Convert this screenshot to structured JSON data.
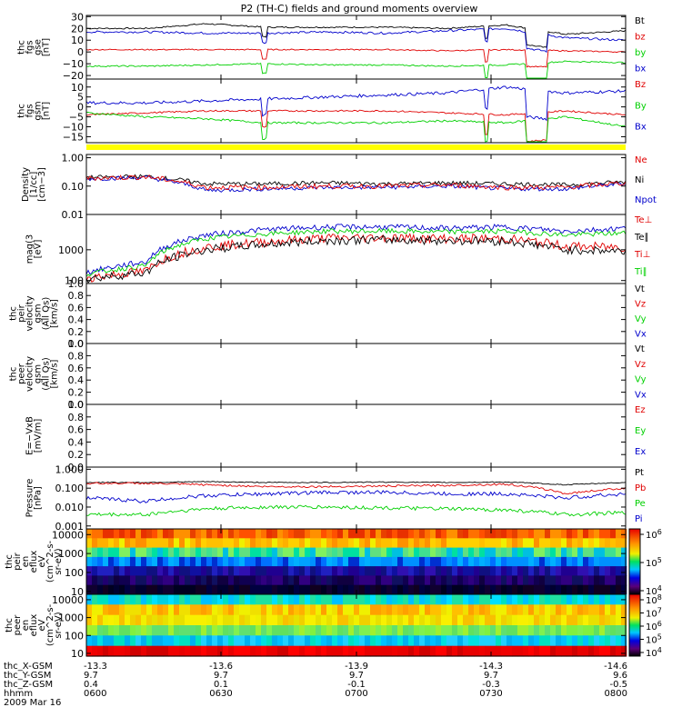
{
  "title": "P2 (TH-C) fields and ground moments overview",
  "colors": {
    "black": "#000000",
    "red": "#e00000",
    "green": "#00d000",
    "blue": "#0000cc",
    "yellow": "#ffff00"
  },
  "panels": [
    {
      "id": "fgs-gse",
      "ylabel": [
        "thc",
        "fgs",
        "gse",
        "[nT]"
      ],
      "ticks": [
        {
          "v": 30,
          "t": "30"
        },
        {
          "v": 20,
          "t": "20"
        },
        {
          "v": 10,
          "t": "10"
        },
        {
          "v": 0,
          "t": "0"
        },
        {
          "v": -10,
          "t": "−10"
        },
        {
          "v": -20,
          "t": "−20"
        }
      ],
      "ylim": [
        -23,
        31
      ],
      "log": false,
      "legend": [
        {
          "t": "Bt",
          "c": "black"
        },
        {
          "t": "bz",
          "c": "red"
        },
        {
          "t": "by",
          "c": "green"
        },
        {
          "t": "bx",
          "c": "blue"
        }
      ]
    },
    {
      "id": "fgs-gsm",
      "ylabel": [
        "thc",
        "fgs",
        "gsm",
        "[nT]"
      ],
      "ticks": [
        {
          "v": 10,
          "t": "10"
        },
        {
          "v": 5,
          "t": "5"
        },
        {
          "v": 0,
          "t": "0"
        },
        {
          "v": -5,
          "t": "−5"
        },
        {
          "v": -10,
          "t": "−10"
        },
        {
          "v": -15,
          "t": "−15"
        }
      ],
      "ylim": [
        -18,
        14
      ],
      "log": false,
      "legend": [
        {
          "t": "Bz",
          "c": "red"
        },
        {
          "t": "By",
          "c": "green"
        },
        {
          "t": "Bx",
          "c": "blue"
        }
      ]
    },
    {
      "id": "density",
      "ylabel": [
        "Density",
        "[1/cc]",
        "[cm−3]"
      ],
      "ticks": [
        {
          "v": 1,
          "t": "1.00"
        },
        {
          "v": 0.1,
          "t": "0.10"
        },
        {
          "v": 0.01,
          "t": "0.01"
        }
      ],
      "ylim": [
        0.01,
        1.3
      ],
      "log": true,
      "legend": [
        {
          "t": "Ne",
          "c": "red"
        },
        {
          "t": "Ni",
          "c": "black"
        },
        {
          "t": "Npot",
          "c": "blue"
        }
      ]
    },
    {
      "id": "temperature",
      "ylabel": [
        "mag(3",
        "[eV]"
      ],
      "ticks": [
        {
          "v": 1000,
          "t": "1000"
        },
        {
          "v": 100,
          "t": "100"
        }
      ],
      "ylim": [
        80,
        14000
      ],
      "log": true,
      "legend": [
        {
          "t": "Te⊥",
          "c": "red"
        },
        {
          "t": "Te∥",
          "c": "black"
        },
        {
          "t": "Ti⊥",
          "c": "red"
        },
        {
          "t": "Ti∥",
          "c": "green"
        }
      ]
    },
    {
      "id": "peir-velocity",
      "ylabel": [
        "thc",
        "peir",
        "velocity",
        "gsm",
        "(All Qs)",
        "[km/s]"
      ],
      "ticks": [
        {
          "v": 1,
          "t": "1.0"
        },
        {
          "v": 0.8,
          "t": "0.8"
        },
        {
          "v": 0.6,
          "t": "0.6"
        },
        {
          "v": 0.4,
          "t": "0.4"
        },
        {
          "v": 0.2,
          "t": "0.2"
        },
        {
          "v": 0,
          "t": "0.0"
        }
      ],
      "ylim": [
        0,
        1
      ],
      "log": false,
      "legend": [
        {
          "t": "Vt",
          "c": "black"
        },
        {
          "t": "Vz",
          "c": "red"
        },
        {
          "t": "Vy",
          "c": "green"
        },
        {
          "t": "Vx",
          "c": "blue"
        }
      ]
    },
    {
      "id": "peer-velocity",
      "ylabel": [
        "thc",
        "peer",
        "velocity",
        "gsm",
        "(All Qs)",
        "[km/s]"
      ],
      "ticks": [
        {
          "v": 1,
          "t": "1.0"
        },
        {
          "v": 0.8,
          "t": "0.8"
        },
        {
          "v": 0.6,
          "t": "0.6"
        },
        {
          "v": 0.4,
          "t": "0.4"
        },
        {
          "v": 0.2,
          "t": "0.2"
        },
        {
          "v": 0,
          "t": "0.0"
        }
      ],
      "ylim": [
        0,
        1
      ],
      "log": false,
      "legend": [
        {
          "t": "Vt",
          "c": "black"
        },
        {
          "t": "Vz",
          "c": "red"
        },
        {
          "t": "Vy",
          "c": "green"
        },
        {
          "t": "Vx",
          "c": "blue"
        }
      ]
    },
    {
      "id": "efield",
      "ylabel": [
        "E=−VxB",
        "[mV/m]"
      ],
      "ticks": [
        {
          "v": 1,
          "t": "1.0"
        },
        {
          "v": 0.8,
          "t": "0.8"
        },
        {
          "v": 0.6,
          "t": "0.6"
        },
        {
          "v": 0.4,
          "t": "0.4"
        },
        {
          "v": 0.2,
          "t": "0.2"
        },
        {
          "v": 0,
          "t": "0.0"
        }
      ],
      "ylim": [
        0,
        1
      ],
      "log": false,
      "legend": [
        {
          "t": "Ez",
          "c": "red"
        },
        {
          "t": "Ey",
          "c": "green"
        },
        {
          "t": "Ex",
          "c": "blue"
        }
      ]
    },
    {
      "id": "pressure",
      "ylabel": [
        "Pressure",
        "[nPa]"
      ],
      "ticks": [
        {
          "v": 1,
          "t": "1.000"
        },
        {
          "v": 0.1,
          "t": "0.100"
        },
        {
          "v": 0.01,
          "t": "0.010"
        },
        {
          "v": 0.001,
          "t": "0.001"
        }
      ],
      "ylim": [
        0.0007,
        1.3
      ],
      "log": true,
      "legend": [
        {
          "t": "Pt",
          "c": "black"
        },
        {
          "t": "Pb",
          "c": "red"
        },
        {
          "t": "Pe",
          "c": "green"
        },
        {
          "t": "Pi",
          "c": "blue"
        }
      ]
    },
    {
      "id": "peir-spec",
      "ylabel": [
        "thc",
        "peir",
        "en",
        "eflux",
        "eV",
        "(cm^2-s-",
        "sr-eV)"
      ],
      "ticks": [
        {
          "v": 10000,
          "t": "10000"
        },
        {
          "v": 1000,
          "t": "1000"
        },
        {
          "v": 100,
          "t": "100"
        },
        {
          "v": 10,
          "t": "10"
        }
      ],
      "ylim": [
        7,
        20000
      ],
      "log": true,
      "colorbar": [
        {
          "v": "10",
          "e": "6"
        },
        {
          "v": "10",
          "e": "5"
        },
        {
          "v": "10",
          "e": "4"
        }
      ]
    },
    {
      "id": "peer-spec",
      "ylabel": [
        "thc",
        "peer",
        "en",
        "eflux",
        "eV",
        "(cm^2-s-",
        "sr-eV)"
      ],
      "ticks": [
        {
          "v": 10000,
          "t": "10000"
        },
        {
          "v": 1000,
          "t": "1000"
        },
        {
          "v": 100,
          "t": "100"
        },
        {
          "v": 10,
          "t": "10"
        }
      ],
      "ylim": [
        7,
        20000
      ],
      "log": true,
      "colorbar": [
        {
          "v": "10",
          "e": "8"
        },
        {
          "v": "10",
          "e": "7"
        },
        {
          "v": "10",
          "e": "6"
        },
        {
          "v": "10",
          "e": "5"
        },
        {
          "v": "10",
          "e": "4"
        }
      ]
    }
  ],
  "xaxis": {
    "rows": [
      {
        "label": "thc_X-GSM",
        "values": [
          "-13.3",
          "-13.6",
          "-13.9",
          "-14.3",
          "-14.6"
        ]
      },
      {
        "label": "thc_Y-GSM",
        "values": [
          "9.7",
          "9.7",
          "9.7",
          "9.7",
          "9.6"
        ]
      },
      {
        "label": "thc_Z-GSM",
        "values": [
          "0.4",
          "0.1",
          "-0.1",
          "-0.3",
          "-0.5"
        ]
      },
      {
        "label": "hhmm",
        "values": [
          "0600",
          "0630",
          "0700",
          "0730",
          "0800"
        ]
      }
    ],
    "date": "2009 Mar 16"
  },
  "chart_data": [
    {
      "type": "line",
      "title": "P2 (TH-C) fields and ground moments overview",
      "xlabel": "hhmm",
      "x": [
        "0600",
        "0630",
        "0700",
        "0730",
        "0800"
      ],
      "ylabel": "thc fgs gse [nT]",
      "ylim": [
        -23,
        31
      ],
      "series": [
        {
          "name": "Bt",
          "values": [
            20,
            22,
            21,
            20,
            18
          ]
        },
        {
          "name": "bz",
          "values": [
            2,
            3,
            2,
            1,
            0
          ]
        },
        {
          "name": "by",
          "values": [
            -12,
            -10,
            -11,
            -11,
            -9
          ]
        },
        {
          "name": "bx",
          "values": [
            16,
            18,
            17,
            19,
            10
          ]
        }
      ]
    },
    {
      "type": "line",
      "ylabel": "thc fgs gsm [nT]",
      "ylim": [
        -18,
        14
      ],
      "series": [
        {
          "name": "Bz",
          "values": [
            -4,
            -2,
            -2,
            -4,
            -4
          ]
        },
        {
          "name": "By",
          "values": [
            -4,
            -8,
            -8,
            -8,
            -9
          ]
        },
        {
          "name": "Bx",
          "values": [
            2,
            6,
            7,
            10,
            8
          ]
        }
      ]
    },
    {
      "type": "line",
      "ylabel": "Density [1/cc] [cm−3]",
      "ylim": [
        0.01,
        1.3
      ],
      "log": true,
      "series": [
        {
          "name": "Ne",
          "values": [
            0.2,
            0.09,
            0.1,
            0.09,
            0.14
          ]
        },
        {
          "name": "Ni",
          "values": [
            0.2,
            0.11,
            0.12,
            0.11,
            0.14
          ]
        },
        {
          "name": "Npot",
          "values": [
            0.19,
            0.08,
            0.09,
            0.08,
            0.12
          ]
        }
      ]
    },
    {
      "type": "line",
      "ylabel": "mag(3 [eV]",
      "ylim": [
        80,
        14000
      ],
      "log": true,
      "series": [
        {
          "name": "Te⊥",
          "values": [
            150,
            1300,
            2200,
            2000,
            800
          ]
        },
        {
          "name": "Te∥",
          "values": [
            150,
            1400,
            2300,
            2100,
            1000
          ]
        },
        {
          "name": "Ti⊥",
          "values": [
            250,
            3500,
            5000,
            4500,
            3000
          ]
        },
        {
          "name": "Ti∥",
          "values": [
            200,
            2500,
            3500,
            3300,
            2500
          ]
        }
      ]
    },
    {
      "type": "line",
      "ylabel": "thc peir velocity gsm (All Qs) [km/s]",
      "ylim": [
        0,
        1
      ],
      "series": []
    },
    {
      "type": "line",
      "ylabel": "thc peer velocity gsm (All Qs) [km/s]",
      "ylim": [
        0,
        1
      ],
      "series": []
    },
    {
      "type": "line",
      "ylabel": "E=−VxB [mV/m]",
      "ylim": [
        0,
        1
      ],
      "series": []
    },
    {
      "type": "line",
      "ylabel": "Pressure [nPa]",
      "ylim": [
        0.0007,
        1.3
      ],
      "log": true,
      "series": [
        {
          "name": "Pt",
          "values": [
            0.2,
            0.2,
            0.2,
            0.2,
            0.2
          ]
        },
        {
          "name": "Pb",
          "values": [
            0.18,
            0.12,
            0.13,
            0.16,
            0.1
          ]
        },
        {
          "name": "Pe",
          "values": [
            0.004,
            0.01,
            0.008,
            0.006,
            0.004
          ]
        },
        {
          "name": "Pi",
          "values": [
            0.02,
            0.05,
            0.06,
            0.05,
            0.05
          ]
        }
      ]
    },
    {
      "type": "heatmap",
      "ylabel": "thc peir en eflux eV (cm^2-s-sr-eV)",
      "ylim": [
        7,
        20000
      ],
      "log": true,
      "series": []
    },
    {
      "type": "heatmap",
      "ylabel": "thc peer en eflux eV (cm^2-s-sr-eV)",
      "ylim": [
        7,
        20000
      ],
      "log": true,
      "series": []
    }
  ]
}
